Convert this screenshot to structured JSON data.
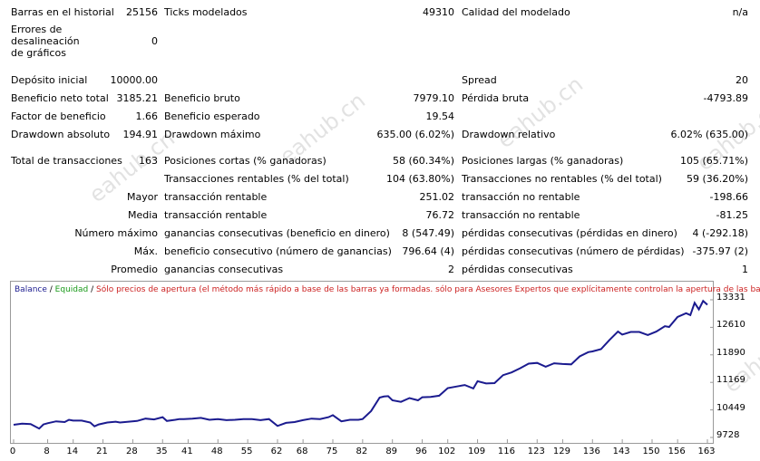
{
  "report": {
    "rows": [
      {
        "id": "r1",
        "items": [
          {
            "k": "Barras en el historial",
            "v": "25156"
          },
          {
            "k": "Ticks modelados",
            "v": "49310"
          },
          {
            "k": "Calidad del modelado",
            "v": "n/a"
          }
        ]
      },
      {
        "id": "r2",
        "items": [
          {
            "k": "Errores de desalineación de gráficos",
            "v": "0"
          }
        ]
      },
      {
        "id": "r3",
        "items": [
          {
            "k": "Depósito inicial",
            "v": "10000.00"
          },
          {
            "k": "Spread",
            "v": "20"
          }
        ]
      },
      {
        "id": "r4",
        "items": [
          {
            "k": "Beneficio neto total",
            "v": "3185.21"
          },
          {
            "k": "Beneficio bruto",
            "v": "7979.10"
          },
          {
            "k": "Pérdida bruta",
            "v": "-4793.89"
          }
        ]
      },
      {
        "id": "r5",
        "items": [
          {
            "k": "Factor de beneficio",
            "v": "1.66"
          },
          {
            "k": "Beneficio esperado",
            "v": "19.54"
          }
        ]
      },
      {
        "id": "r6",
        "items": [
          {
            "k": "Drawdown absoluto",
            "v": "194.91"
          },
          {
            "k": "Drawdown máximo",
            "v": "635.00 (6.02%)"
          },
          {
            "k": "Drawdown relativo",
            "v": "6.02% (635.00)"
          }
        ]
      },
      {
        "id": "r7",
        "items": [
          {
            "k": "Total de transacciones",
            "v": "163"
          },
          {
            "k": "Posiciones cortas (% ganadoras)",
            "v": "58 (60.34%)"
          },
          {
            "k": "Posiciones largas (% ganadoras)",
            "v": "105 (65.71%)"
          }
        ]
      },
      {
        "id": "r8",
        "items": [
          {
            "k": "Transacciones rentables (% del total)",
            "v": "104 (63.80%)"
          },
          {
            "k": "Transacciones no rentables (% del total)",
            "v": "59 (36.20%)"
          }
        ]
      },
      {
        "id": "r9",
        "items": [
          {
            "k": "Mayor",
            "v": ""
          },
          {
            "k": "transacción rentable",
            "v": "251.02"
          },
          {
            "k": "transacción no rentable",
            "v": "-198.66"
          }
        ]
      },
      {
        "id": "r10",
        "items": [
          {
            "k": "Media",
            "v": ""
          },
          {
            "k": "transacción rentable",
            "v": "76.72"
          },
          {
            "k": "transacción no rentable",
            "v": "-81.25"
          }
        ]
      },
      {
        "id": "r11",
        "items": [
          {
            "k": "Número máximo",
            "v": ""
          },
          {
            "k": "ganancias consecutivas (beneficio en dinero)",
            "v": "8 (547.49)"
          },
          {
            "k": "pérdidas consecutivas (pérdidas en dinero)",
            "v": "4 (-292.18)"
          }
        ]
      },
      {
        "id": "r12",
        "items": [
          {
            "k": "Máx.",
            "v": ""
          },
          {
            "k": "beneficio consecutivo (número de ganancias)",
            "v": "796.64 (4)"
          },
          {
            "k": "pérdidas consecutivas (número de pérdidas)",
            "v": "-375.97 (2)"
          }
        ]
      },
      {
        "id": "r13",
        "items": [
          {
            "k": "Promedio",
            "v": ""
          },
          {
            "k": "ganancias consecutivas",
            "v": "2"
          },
          {
            "k": "pérdidas consecutivas",
            "v": "1"
          }
        ]
      }
    ]
  },
  "chart_legend": {
    "balance": "Balance",
    "sep1": " / ",
    "equity": "Equidad",
    "sep2": " / ",
    "note": "Sólo precios de apertura (el método más rápido a base de las barras ya formadas. sólo para Asesores Expertos que explícitamente controlan la apertura de las barras)"
  },
  "watermark": "eahub.cn",
  "colors": {
    "balance": "#1b1b8f",
    "equity": "#1a9a1a",
    "note": "#cc2222",
    "axis": "#9a9a9a"
  },
  "chart_data": {
    "type": "line",
    "title": "",
    "xlabel": "",
    "ylabel": "",
    "ylim": [
      9728,
      13331
    ],
    "xlim": [
      0,
      163
    ],
    "x_ticks": [
      0,
      8,
      14,
      21,
      28,
      35,
      41,
      48,
      55,
      62,
      68,
      75,
      82,
      89,
      96,
      102,
      109,
      116,
      123,
      129,
      136,
      143,
      150,
      156,
      163
    ],
    "y_ticks": [
      9728,
      10449,
      11169,
      11890,
      12610,
      13331
    ],
    "series": [
      {
        "name": "Balance",
        "x": [
          0,
          2,
          4,
          6,
          7,
          8,
          10,
          12,
          13,
          14,
          16,
          18,
          19,
          20,
          22,
          24,
          25,
          27,
          29,
          31,
          33,
          35,
          36,
          38,
          39,
          40,
          42,
          44,
          46,
          48,
          50,
          52,
          54,
          56,
          58,
          60,
          62,
          64,
          66,
          68,
          70,
          72,
          74,
          75,
          77,
          79,
          81,
          82,
          84,
          86,
          87,
          88,
          89,
          91,
          93,
          95,
          96,
          98,
          100,
          102,
          104,
          106,
          108,
          109,
          111,
          113,
          115,
          117,
          119,
          121,
          123,
          125,
          127,
          129,
          131,
          133,
          135,
          136,
          138,
          140,
          142,
          143,
          145,
          147,
          149,
          151,
          153,
          154,
          156,
          158,
          159,
          160,
          161,
          162,
          163
        ],
        "y": [
          10060,
          10090,
          10080,
          9960,
          10070,
          10100,
          10150,
          10130,
          10190,
          10170,
          10170,
          10120,
          10020,
          10070,
          10120,
          10140,
          10120,
          10140,
          10160,
          10220,
          10200,
          10260,
          10160,
          10190,
          10210,
          10210,
          10220,
          10240,
          10190,
          10210,
          10180,
          10190,
          10210,
          10210,
          10180,
          10210,
          10030,
          10110,
          10130,
          10180,
          10220,
          10210,
          10260,
          10310,
          10150,
          10190,
          10190,
          10210,
          10420,
          10770,
          10800,
          10810,
          10700,
          10660,
          10760,
          10700,
          10780,
          10790,
          10820,
          11020,
          11060,
          11100,
          11010,
          11200,
          11140,
          11150,
          11360,
          11430,
          11540,
          11660,
          11680,
          11580,
          11670,
          11650,
          11640,
          11850,
          11960,
          11980,
          12040,
          12280,
          12500,
          12420,
          12490,
          12490,
          12410,
          12500,
          12640,
          12620,
          12880,
          12980,
          12930,
          13250,
          13080,
          13300,
          13200
        ]
      }
    ]
  }
}
